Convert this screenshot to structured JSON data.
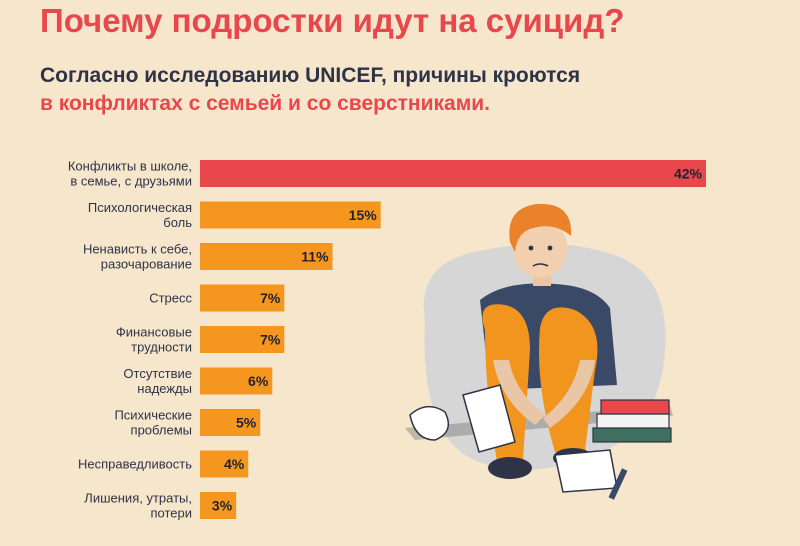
{
  "header": {
    "title": "Почему подростки идут на суицид?",
    "subtitle_line1": "Согласно исследованию UNICEF, причины кроются",
    "subtitle_line2": "в конфликтах с семьей и со сверстниками."
  },
  "colors": {
    "highlight": "#e8474b",
    "bar": "#f5961f",
    "text": "#2f3347"
  },
  "chart_data": {
    "type": "bar",
    "orientation": "horizontal",
    "categories": [
      [
        "Конфликты в школе,",
        "в семье, с друзьями"
      ],
      [
        "Психологическая",
        "боль"
      ],
      [
        "Ненависть к себе,",
        "разочарование"
      ],
      [
        "Стресс"
      ],
      [
        "Финансовые",
        "трудности"
      ],
      [
        "Отсутствие",
        "надежды"
      ],
      [
        "Психические",
        "проблемы"
      ],
      [
        "Несправедливость"
      ],
      [
        "Лишения, утраты,",
        "потери"
      ]
    ],
    "values": [
      42,
      15,
      11,
      7,
      7,
      6,
      5,
      4,
      3
    ],
    "value_labels": [
      "42%",
      "15%",
      "11%",
      "7%",
      "7%",
      "6%",
      "5%",
      "4%",
      "3%"
    ],
    "unit": "%",
    "highlight_index": 0,
    "grid": false,
    "legend": "none"
  },
  "illustration": {
    "icon": "sad-teen-with-books-illustration"
  }
}
